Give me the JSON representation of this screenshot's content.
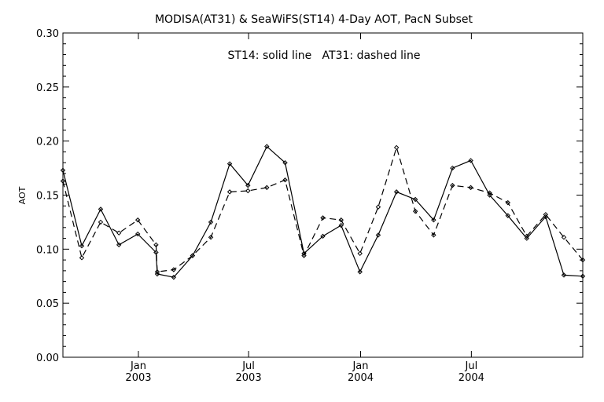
{
  "chart_data": {
    "type": "line",
    "title": "MODISA(AT31) & SeaWiFS(ST14) 4-Day AOT, PacN Subset",
    "annotation": "ST14: solid line   AT31: dashed line",
    "xlabel": "",
    "ylabel": "AOT",
    "ylim": [
      0.0,
      0.3
    ],
    "y_ticks": [
      "0.00",
      "0.05",
      "0.10",
      "0.15",
      "0.20",
      "0.25",
      "0.30"
    ],
    "xlim": [
      "2002-08-30",
      "2004-12-31"
    ],
    "x_tick_labels": [
      {
        "date": "2003-01-01",
        "month": "Jan",
        "year": "2003"
      },
      {
        "date": "2003-07-01",
        "month": "Jul",
        "year": "2003"
      },
      {
        "date": "2004-01-01",
        "month": "Jan",
        "year": "2004"
      },
      {
        "date": "2004-07-01",
        "month": "Jul",
        "year": "2004"
      }
    ],
    "grid": false,
    "x": [
      "2002-08-30",
      "2002-09-30",
      "2002-10-31",
      "2002-11-30",
      "2002-12-31",
      "2003-01-30",
      "2003-02-01",
      "2003-02-28",
      "2003-03-31",
      "2003-04-30",
      "2003-05-31",
      "2003-06-30",
      "2003-07-31",
      "2003-08-30",
      "2003-09-30",
      "2003-10-31",
      "2003-11-30",
      "2003-12-31",
      "2004-01-30",
      "2004-02-29",
      "2004-03-31",
      "2004-04-30",
      "2004-05-31",
      "2004-06-30",
      "2004-07-31",
      "2004-08-30",
      "2004-09-30",
      "2004-10-31",
      "2004-11-30",
      "2004-12-31"
    ],
    "series": [
      {
        "name": "ST14",
        "style": "solid",
        "values": [
          0.173,
          0.103,
          0.137,
          0.104,
          0.114,
          0.097,
          0.077,
          0.074,
          0.094,
          0.125,
          0.179,
          0.159,
          0.195,
          0.18,
          0.096,
          0.112,
          0.122,
          0.079,
          0.113,
          0.153,
          0.146,
          0.127,
          0.175,
          0.182,
          0.15,
          0.131,
          0.11,
          0.13,
          0.076,
          0.075
        ]
      },
      {
        "name": "AT31",
        "style": "dashed",
        "values": [
          0.163,
          0.092,
          0.125,
          0.115,
          0.127,
          0.104,
          0.079,
          0.081,
          0.094,
          0.111,
          0.153,
          0.154,
          0.157,
          0.164,
          0.094,
          0.129,
          0.127,
          0.096,
          0.139,
          0.194,
          0.135,
          0.113,
          0.159,
          0.157,
          0.152,
          0.143,
          0.112,
          0.132,
          0.111,
          0.09
        ]
      }
    ]
  }
}
